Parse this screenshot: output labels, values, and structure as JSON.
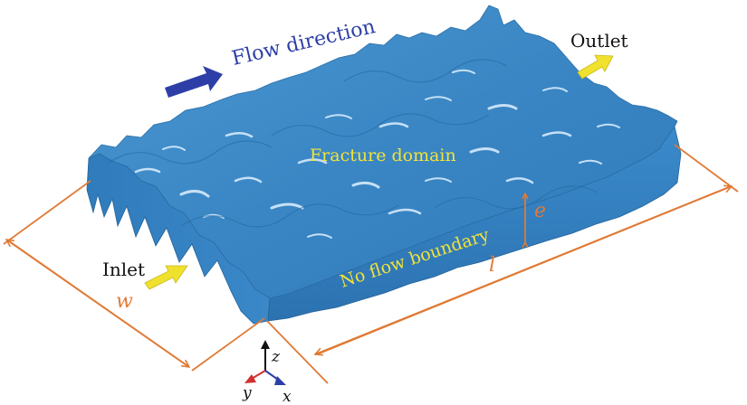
{
  "labels": {
    "flow_direction": "Flow direction",
    "outlet": "Outlet",
    "inlet": "Inlet",
    "fracture_domain": "Fracture domain",
    "no_flow_boundary": "No flow boundary",
    "dim_w": "w",
    "dim_l": "l",
    "dim_e": "e",
    "axis_x": "x",
    "axis_y": "y",
    "axis_z": "z"
  },
  "colors": {
    "fracture_top": "#3a86c4",
    "fracture_side": "#2f78b8",
    "fracture_highlight": "#dff0ff",
    "flow_arrow": "#2d3fa6",
    "io_arrow": "#efe12e",
    "dimension": "#e07a35",
    "text_yellow": "#f2e23a"
  }
}
